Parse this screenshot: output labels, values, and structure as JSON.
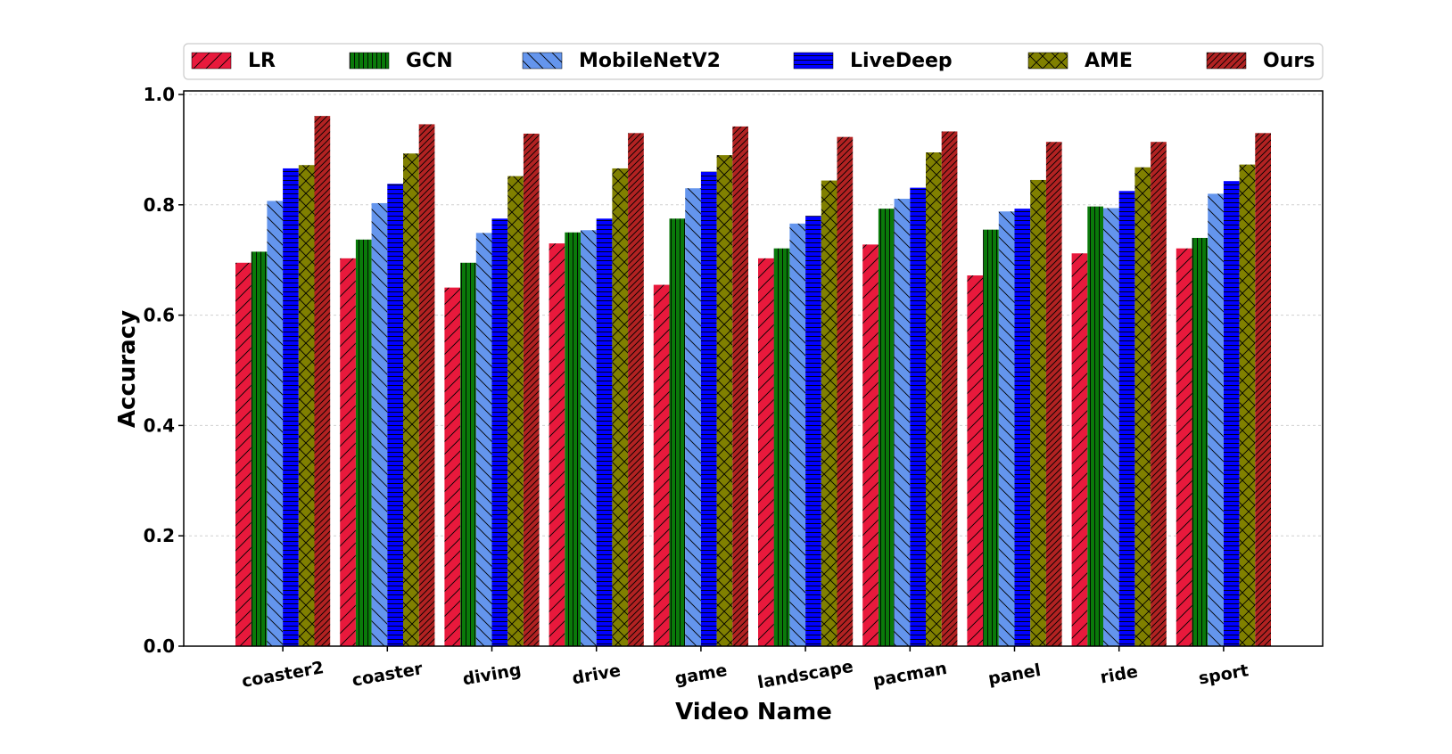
{
  "chart_data": {
    "type": "bar",
    "xlabel": "Video Name",
    "ylabel": "Accuracy",
    "ylim": [
      0,
      1.0
    ],
    "yticks": [
      "0.0",
      "0.2",
      "0.4",
      "0.6",
      "0.8",
      "1.0"
    ],
    "grid": "horizontal dashed",
    "legend_position": "top",
    "categories": [
      "coaster2",
      "coaster",
      "diving",
      "drive",
      "game",
      "landscape",
      "pacman",
      "panel",
      "ride",
      "sport"
    ],
    "series": [
      {
        "name": "LR",
        "color": "#e8193c",
        "hatch": "forward-slash",
        "values": [
          0.695,
          0.703,
          0.65,
          0.73,
          0.655,
          0.703,
          0.728,
          0.672,
          0.712,
          0.721
        ]
      },
      {
        "name": "GCN",
        "color": "#0a7a0a",
        "hatch": "vertical",
        "values": [
          0.715,
          0.737,
          0.695,
          0.75,
          0.775,
          0.721,
          0.793,
          0.755,
          0.797,
          0.74
        ]
      },
      {
        "name": "MobileNetV2",
        "color": "#6495ed",
        "hatch": "backslash",
        "values": [
          0.807,
          0.803,
          0.749,
          0.754,
          0.83,
          0.766,
          0.811,
          0.788,
          0.794,
          0.82
        ]
      },
      {
        "name": "LiveDeep",
        "color": "#0000ff",
        "hatch": "horizontal",
        "values": [
          0.866,
          0.838,
          0.775,
          0.775,
          0.86,
          0.78,
          0.831,
          0.793,
          0.825,
          0.843
        ]
      },
      {
        "name": "AME",
        "color": "#808000",
        "hatch": "cross",
        "values": [
          0.872,
          0.893,
          0.852,
          0.866,
          0.89,
          0.844,
          0.895,
          0.845,
          0.868,
          0.873
        ]
      },
      {
        "name": "Ours",
        "color": "#b22222",
        "hatch": "dense-slash",
        "values": [
          0.961,
          0.946,
          0.929,
          0.93,
          0.942,
          0.923,
          0.933,
          0.914,
          0.914,
          0.93
        ]
      }
    ]
  }
}
